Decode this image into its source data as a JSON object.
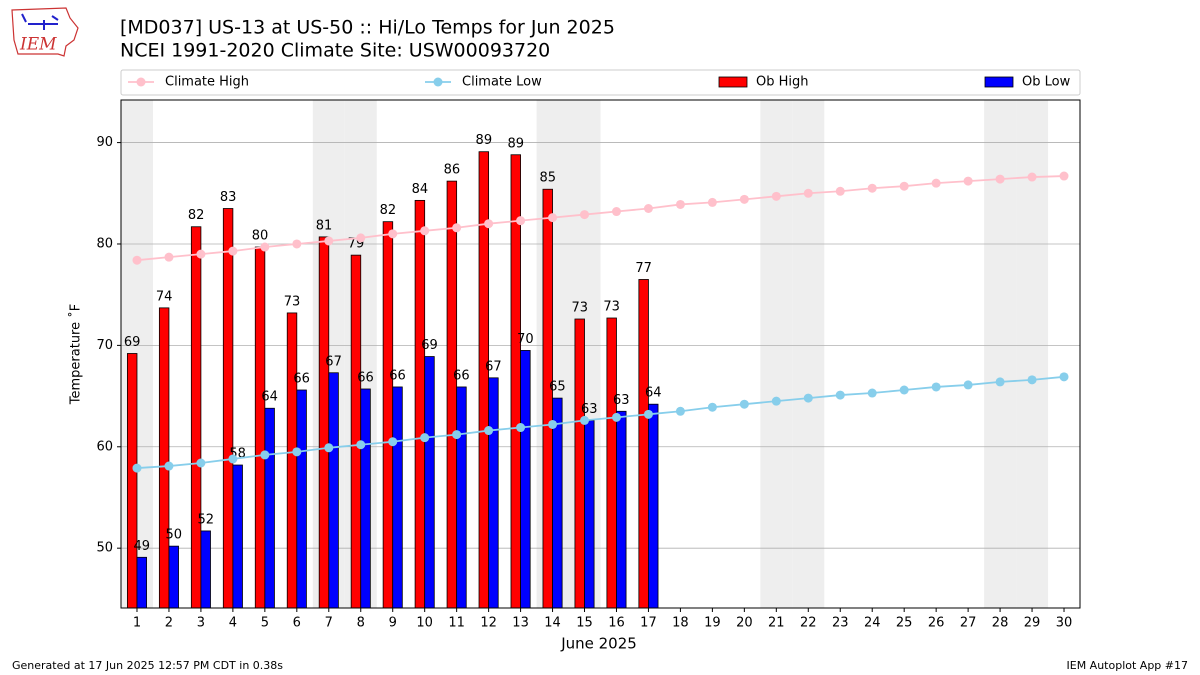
{
  "chart_data": {
    "type": "bar",
    "title": "[MD037] US-13 at US-50 :: Hi/Lo Temps for Jun 2025",
    "subtitle": "NCEI 1991-2020 Climate Site: USW00093720",
    "xlabel": "June 2025",
    "ylabel": "Temperature ˚F",
    "x": [
      1,
      2,
      3,
      4,
      5,
      6,
      7,
      8,
      9,
      10,
      11,
      12,
      13,
      14,
      15,
      16,
      17,
      18,
      19,
      20,
      21,
      22,
      23,
      24,
      25,
      26,
      27,
      28,
      29,
      30
    ],
    "xticks": [
      1,
      2,
      3,
      4,
      5,
      6,
      7,
      8,
      9,
      10,
      11,
      12,
      13,
      14,
      15,
      16,
      17,
      18,
      19,
      20,
      21,
      22,
      23,
      24,
      25,
      26,
      27,
      28,
      29,
      30
    ],
    "xlim": [
      0.5,
      30.5
    ],
    "ylim": [
      44.1,
      94.2
    ],
    "yticks": [
      50,
      60,
      70,
      80,
      90
    ],
    "grid": true,
    "legend": "top",
    "shaded_days": [
      1,
      7,
      8,
      14,
      15,
      21,
      22,
      28,
      29
    ],
    "series": [
      {
        "name": "Climate High",
        "type": "line",
        "color": "#ffc0cb",
        "values": [
          78.4,
          78.7,
          79.0,
          79.3,
          79.7,
          80.0,
          80.3,
          80.6,
          81.0,
          81.3,
          81.6,
          82.0,
          82.3,
          82.6,
          82.9,
          83.2,
          83.5,
          83.9,
          84.1,
          84.4,
          84.7,
          85.0,
          85.2,
          85.5,
          85.7,
          86.0,
          86.2,
          86.4,
          86.6,
          86.7
        ]
      },
      {
        "name": "Climate Low",
        "type": "line",
        "color": "#87ceeb",
        "values": [
          57.9,
          58.1,
          58.4,
          58.8,
          59.2,
          59.5,
          59.9,
          60.2,
          60.5,
          60.9,
          61.2,
          61.6,
          61.9,
          62.2,
          62.6,
          62.9,
          63.2,
          63.5,
          63.9,
          64.2,
          64.5,
          64.8,
          65.1,
          65.3,
          65.6,
          65.9,
          66.1,
          66.4,
          66.6,
          66.9
        ]
      },
      {
        "name": "Ob High",
        "type": "bar",
        "color": "#ff0000",
        "values": [
          69.2,
          73.7,
          81.7,
          83.5,
          79.7,
          73.2,
          80.7,
          78.9,
          82.2,
          84.3,
          86.2,
          89.1,
          88.8,
          85.4,
          72.6,
          72.7,
          76.5,
          null,
          null,
          null,
          null,
          null,
          null,
          null,
          null,
          null,
          null,
          null,
          null,
          null
        ],
        "value_labels": [
          69,
          74,
          82,
          83,
          80,
          73,
          81,
          79,
          82,
          84,
          86,
          89,
          89,
          85,
          73,
          73,
          77,
          null,
          null,
          null,
          null,
          null,
          null,
          null,
          null,
          null,
          null,
          null,
          null,
          null
        ]
      },
      {
        "name": "Ob Low",
        "type": "bar",
        "color": "#0000ff",
        "values": [
          49.1,
          50.2,
          51.7,
          58.2,
          63.8,
          65.6,
          67.3,
          65.7,
          65.9,
          68.9,
          65.9,
          66.8,
          69.5,
          64.8,
          62.6,
          63.5,
          64.2,
          null,
          null,
          null,
          null,
          null,
          null,
          null,
          null,
          null,
          null,
          null,
          null,
          null
        ],
        "value_labels": [
          49,
          50,
          52,
          58,
          64,
          66,
          67,
          66,
          66,
          69,
          66,
          67,
          70,
          65,
          63,
          63,
          64,
          null,
          null,
          null,
          null,
          null,
          null,
          null,
          null,
          null,
          null,
          null,
          null,
          null
        ]
      }
    ]
  },
  "logo": {
    "text": "IEM"
  },
  "footer": {
    "left": "Generated at 17 Jun 2025 12:57 PM CDT in 0.38s",
    "right": "IEM Autoplot App #17"
  }
}
